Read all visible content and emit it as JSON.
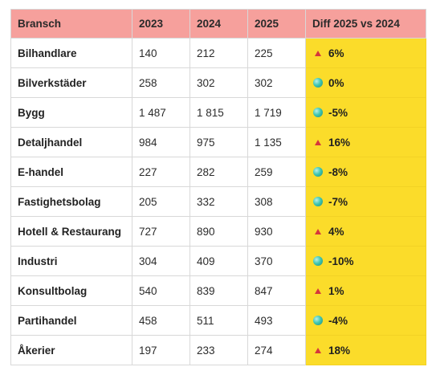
{
  "table": {
    "headers": [
      "Bransch",
      "2023",
      "2024",
      "2025",
      "Diff 2025 vs 2024"
    ],
    "rows": [
      {
        "name": "Bilhandlare",
        "y2023": "140",
        "y2024": "212",
        "y2025": "225",
        "diff": "6%",
        "indicator": "up-triangle-icon"
      },
      {
        "name": "Bilverkstäder",
        "y2023": "258",
        "y2024": "302",
        "y2025": "302",
        "diff": "0%",
        "indicator": "green-dot-icon"
      },
      {
        "name": "Bygg",
        "y2023": "1 487",
        "y2024": "1 815",
        "y2025": "1 719",
        "diff": "-5%",
        "indicator": "green-dot-icon"
      },
      {
        "name": "Detaljhandel",
        "y2023": "984",
        "y2024": "975",
        "y2025": "1 135",
        "diff": "16%",
        "indicator": "up-triangle-icon"
      },
      {
        "name": "E-handel",
        "y2023": "227",
        "y2024": "282",
        "y2025": "259",
        "diff": "-8%",
        "indicator": "green-dot-icon"
      },
      {
        "name": "Fastighetsbolag",
        "y2023": "205",
        "y2024": "332",
        "y2025": "308",
        "diff": "-7%",
        "indicator": "green-dot-icon"
      },
      {
        "name": "Hotell & Restaurang",
        "y2023": "727",
        "y2024": "890",
        "y2025": "930",
        "diff": "4%",
        "indicator": "up-triangle-icon"
      },
      {
        "name": "Industri",
        "y2023": "304",
        "y2024": "409",
        "y2025": "370",
        "diff": "-10%",
        "indicator": "green-dot-icon"
      },
      {
        "name": "Konsultbolag",
        "y2023": "540",
        "y2024": "839",
        "y2025": "847",
        "diff": "1%",
        "indicator": "up-triangle-icon"
      },
      {
        "name": "Partihandel",
        "y2023": "458",
        "y2024": "511",
        "y2025": "493",
        "diff": "-4%",
        "indicator": "green-dot-icon"
      },
      {
        "name": "Åkerier",
        "y2023": "197",
        "y2024": "233",
        "y2025": "274",
        "diff": "18%",
        "indicator": "up-triangle-icon"
      }
    ]
  },
  "colors": {
    "header_bg": "#f6a09c",
    "diff_bg": "#fbdc2a",
    "up_triangle": "#d5373b",
    "green_dot": "#41c7b2"
  }
}
